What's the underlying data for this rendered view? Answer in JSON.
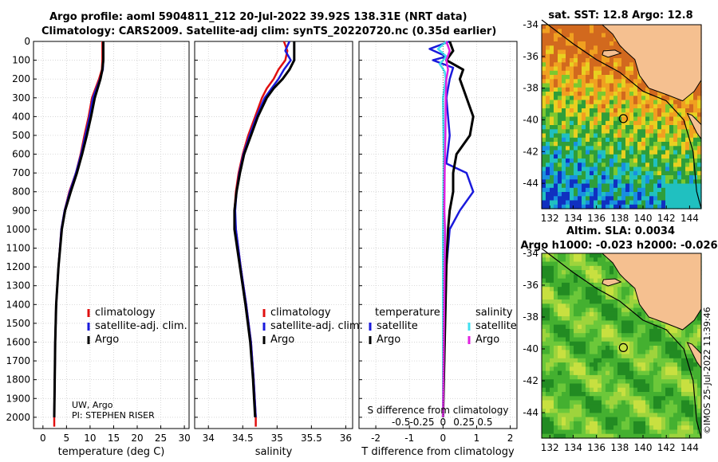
{
  "header": {
    "line1": "Argo profile: aoml 5904811_212 20-Jul-2022 39.92S 138.31E (NRT data)",
    "line2": "Climatology: CARS2009. Satellite-adj clim: synTS_20220720.nc (0.35d earlier)"
  },
  "credits": {
    "line1": "UW, Argo",
    "line2": "PI: STEPHEN RISER"
  },
  "watermark": "©IMOS 25-Jul-2022 11:39:46",
  "colors": {
    "red": "#e01010",
    "blue": "#1a1adc",
    "black": "#000000",
    "cyan": "#40e0f0",
    "magenta": "#e020e0",
    "land": "#f5c090"
  },
  "chart_data": [
    {
      "type": "line",
      "id": "temperature",
      "xlabel": "temperature (deg C)",
      "ylabel": "",
      "xlim": [
        -2,
        31
      ],
      "ylim": [
        2060,
        0
      ],
      "xticks": [
        0,
        5,
        10,
        15,
        20,
        25,
        30
      ],
      "yticks": [
        0,
        100,
        200,
        300,
        400,
        500,
        600,
        700,
        800,
        900,
        1000,
        1100,
        1200,
        1300,
        1400,
        1500,
        1600,
        1700,
        1800,
        1900,
        2000
      ],
      "grid": true,
      "legend": {
        "position": "lower-right",
        "entries": [
          "climatology",
          "satellite-adj. clim.",
          "Argo"
        ]
      },
      "series": [
        {
          "name": "climatology",
          "color": "red",
          "depth": [
            0,
            100,
            150,
            200,
            300,
            400,
            500,
            600,
            700,
            800,
            900,
            1000,
            1200,
            1400,
            1600,
            1800,
            2000,
            2050
          ],
          "values": [
            12.6,
            12.6,
            12.5,
            11.9,
            10.4,
            9.7,
            8.8,
            8.0,
            7.0,
            5.6,
            4.6,
            3.9,
            3.3,
            2.8,
            2.6,
            2.5,
            2.4,
            2.4
          ]
        },
        {
          "name": "satellite-adj. clim.",
          "color": "blue",
          "depth": [
            0,
            100,
            150,
            200,
            300,
            400,
            500,
            600,
            700,
            800,
            900,
            1000,
            1200,
            1400,
            1600,
            1800,
            2000
          ],
          "values": [
            12.8,
            12.8,
            12.7,
            12.1,
            10.6,
            9.9,
            9.0,
            8.1,
            7.0,
            5.7,
            4.6,
            3.9,
            3.3,
            2.8,
            2.6,
            2.5,
            2.4
          ]
        },
        {
          "name": "Argo",
          "color": "black",
          "depth": [
            0,
            100,
            150,
            200,
            300,
            400,
            500,
            600,
            700,
            800,
            900,
            1000,
            1200,
            1400,
            1600,
            1800,
            2000
          ],
          "values": [
            12.8,
            12.8,
            12.6,
            12.2,
            11.0,
            10.2,
            9.3,
            8.3,
            7.2,
            5.9,
            4.7,
            4.0,
            3.3,
            2.8,
            2.6,
            2.5,
            2.4
          ]
        }
      ]
    },
    {
      "type": "line",
      "id": "salinity",
      "xlabel": "salinity",
      "ylabel": "",
      "xlim": [
        33.8,
        36.1
      ],
      "ylim": [
        2060,
        0
      ],
      "xticks": [
        34,
        34.5,
        35,
        35.5,
        36
      ],
      "grid": true,
      "legend": {
        "position": "lower-right",
        "entries": [
          "climatology",
          "satellite-adj. clim.",
          "Argo"
        ]
      },
      "series": [
        {
          "name": "climatology",
          "color": "red",
          "depth": [
            0,
            50,
            100,
            150,
            200,
            250,
            300,
            400,
            500,
            600,
            700,
            800,
            900,
            1000,
            1200,
            1400,
            1600,
            1800,
            2000,
            2050
          ],
          "values": [
            35.1,
            35.15,
            35.12,
            35.02,
            34.95,
            34.85,
            34.78,
            34.68,
            34.58,
            34.5,
            34.44,
            34.4,
            34.38,
            34.4,
            34.47,
            34.55,
            34.62,
            34.66,
            34.69,
            34.69
          ]
        },
        {
          "name": "satellite-adj. clim.",
          "color": "blue",
          "depth": [
            0,
            50,
            100,
            150,
            200,
            250,
            300,
            400,
            500,
            600,
            700,
            800,
            900,
            1000,
            1200,
            1400,
            1600,
            1800,
            2000
          ],
          "values": [
            35.18,
            35.12,
            35.2,
            35.1,
            35.02,
            34.92,
            34.82,
            34.7,
            34.6,
            34.51,
            34.45,
            34.41,
            34.39,
            34.4,
            34.47,
            34.55,
            34.62,
            34.66,
            34.69
          ]
        },
        {
          "name": "Argo",
          "color": "black",
          "depth": [
            0,
            100,
            150,
            200,
            250,
            300,
            400,
            500,
            600,
            700,
            800,
            900,
            1000,
            1200,
            1400,
            1600,
            1800,
            2000
          ],
          "values": [
            35.25,
            35.25,
            35.18,
            35.08,
            34.95,
            34.85,
            34.72,
            34.62,
            34.52,
            34.46,
            34.41,
            34.38,
            34.38,
            34.46,
            34.54,
            34.61,
            34.65,
            34.68
          ]
        }
      ]
    },
    {
      "type": "line",
      "id": "difference",
      "xlabel": "T difference from climatology",
      "xlabel_top": "S difference from climatology",
      "xlim": [
        -2.5,
        2.2
      ],
      "ylim": [
        2060,
        0
      ],
      "xticks": [
        -2,
        -1,
        0,
        1,
        2
      ],
      "xticks_s": [
        "-0.5",
        "-0.25",
        "0",
        "0.25",
        "0.5"
      ],
      "grid": true,
      "legend_temperature": {
        "title": "temperature",
        "entries": [
          "satellite",
          "Argo"
        ]
      },
      "legend_salinity": {
        "title": "salinity",
        "entries": [
          "satellite",
          "Argo"
        ]
      },
      "series": [
        {
          "name": "T satellite",
          "color": "blue",
          "depth": [
            0,
            40,
            80,
            100,
            140,
            200,
            300,
            500,
            650,
            700,
            800,
            900,
            1000,
            1200,
            1600,
            2000
          ],
          "values": [
            0.2,
            -0.4,
            0.1,
            -0.3,
            0.3,
            0.2,
            0.1,
            0.2,
            0.1,
            0.7,
            0.9,
            0.5,
            0.2,
            0.1,
            0.05,
            0.0
          ]
        },
        {
          "name": "T Argo",
          "color": "black",
          "depth": [
            0,
            50,
            100,
            150,
            200,
            300,
            400,
            500,
            600,
            700,
            800,
            900,
            1000,
            1200,
            1600,
            2000
          ],
          "values": [
            0.2,
            0.3,
            0.1,
            0.6,
            0.5,
            0.7,
            0.9,
            0.8,
            0.4,
            0.3,
            0.3,
            0.2,
            0.15,
            0.1,
            0.05,
            0.0
          ]
        },
        {
          "name": "S satellite",
          "color": "cyan",
          "depth": [
            0,
            40,
            80,
            120,
            160,
            200,
            300,
            600,
            1000,
            1500,
            2000
          ],
          "values": [
            0.1,
            -0.15,
            0.1,
            -0.1,
            0.05,
            0.08,
            0.0,
            0.02,
            0.0,
            0.0,
            0.0
          ]
        },
        {
          "name": "S Argo",
          "color": "magenta",
          "depth": [
            0,
            50,
            100,
            150,
            200,
            300,
            500,
            700,
            900,
            1000,
            1200,
            1500,
            2000
          ],
          "values": [
            0.1,
            0.2,
            0.1,
            0.15,
            0.1,
            0.08,
            0.07,
            0.05,
            0.04,
            0.06,
            0.05,
            0.03,
            0.0
          ]
        }
      ]
    },
    {
      "type": "heatmap",
      "id": "sst-map",
      "title": "sat. SST: 12.8 Argo: 12.8",
      "xticks": [
        132,
        134,
        136,
        138,
        140,
        142,
        144
      ],
      "yticks": [
        -34,
        -36,
        -38,
        -40,
        -42,
        -44
      ],
      "xlim": [
        131.3,
        145
      ],
      "ylim": [
        -45.6,
        -34
      ],
      "marker": {
        "lon": 138.31,
        "lat": -39.92
      }
    },
    {
      "type": "heatmap",
      "id": "sla-map",
      "title": "Altim. SLA: 0.0034",
      "subtitle": "Argo h1000: -0.023 h2000: -0.026",
      "xticks": [
        132,
        134,
        136,
        138,
        140,
        142,
        144
      ],
      "yticks": [
        -34,
        -36,
        -38,
        -40,
        -42,
        -44
      ],
      "xlim": [
        131.3,
        145
      ],
      "ylim": [
        -45.6,
        -34
      ],
      "marker": {
        "lon": 138.31,
        "lat": -39.92
      }
    }
  ]
}
